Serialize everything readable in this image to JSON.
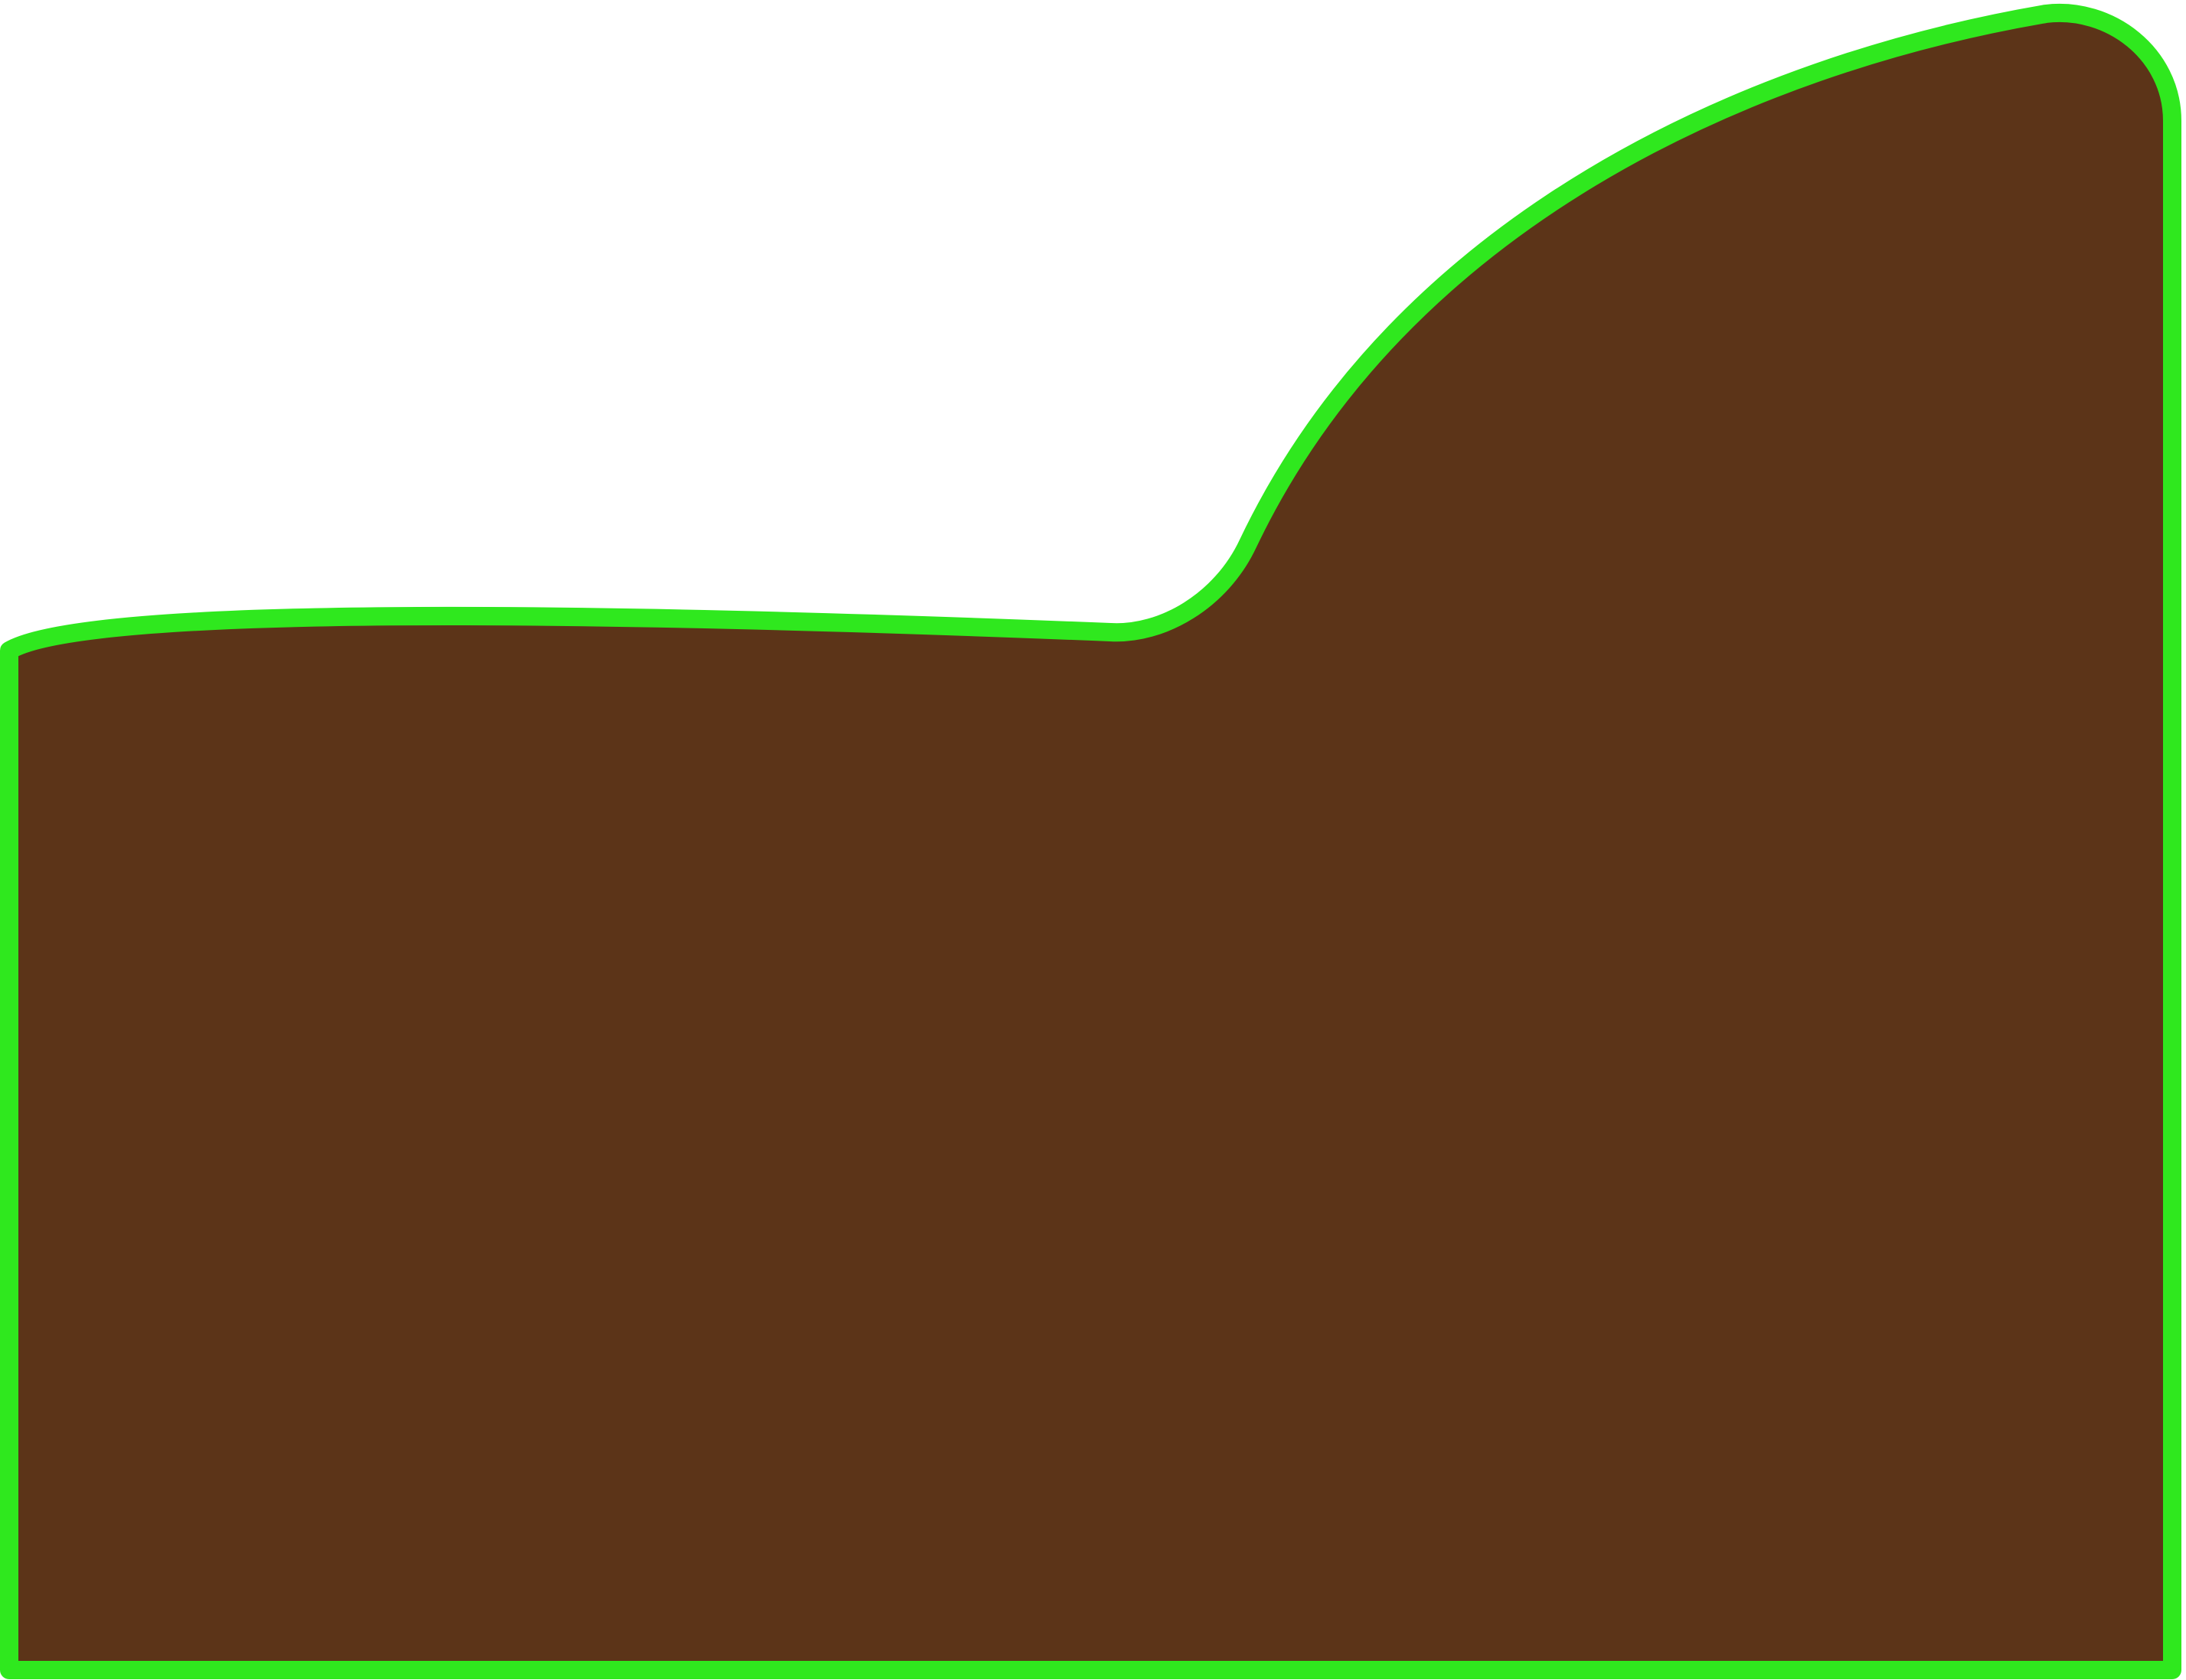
{
  "scene": {
    "background": "#ffffff",
    "terrain": {
      "name": "terrain-block",
      "fill_color": "#5c3418",
      "outline_color": "#2fe81e"
    }
  }
}
